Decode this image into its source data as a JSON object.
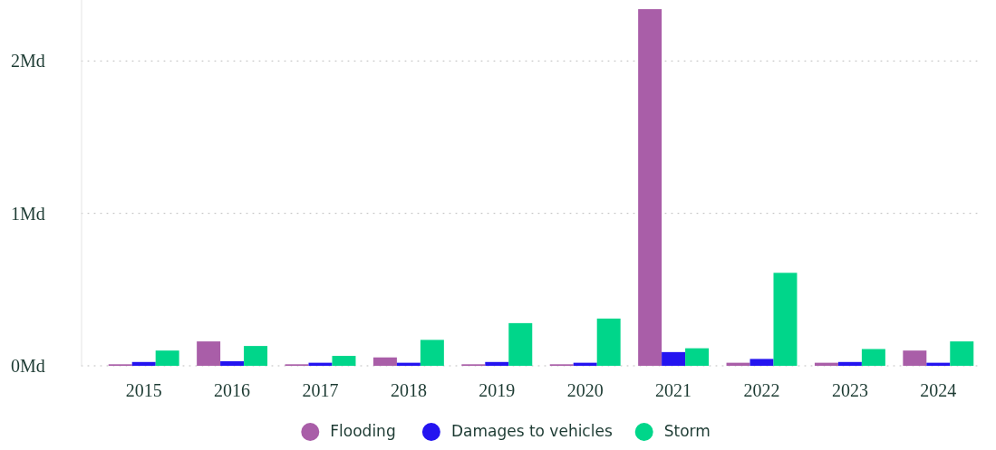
{
  "chart_data": {
    "type": "bar",
    "categories": [
      "2015",
      "2016",
      "2017",
      "2018",
      "2019",
      "2020",
      "2021",
      "2022",
      "2023",
      "2024"
    ],
    "series": [
      {
        "name": "Flooding",
        "color": "#a95ea8",
        "values": [
          0.01,
          0.16,
          0.01,
          0.055,
          0.01,
          0.01,
          2.34,
          0.02,
          0.02,
          0.1
        ]
      },
      {
        "name": "Damages to vehicles",
        "color": "#2414f0",
        "values": [
          0.025,
          0.03,
          0.02,
          0.02,
          0.025,
          0.02,
          0.09,
          0.045,
          0.025,
          0.02
        ]
      },
      {
        "name": "Storm",
        "color": "#00d68a",
        "values": [
          0.1,
          0.13,
          0.065,
          0.17,
          0.28,
          0.31,
          0.115,
          0.61,
          0.11,
          0.16
        ]
      }
    ],
    "ylim": [
      0,
      2.4
    ],
    "yticks": [
      {
        "value": 0,
        "label": "0Md"
      },
      {
        "value": 1,
        "label": "1Md"
      },
      {
        "value": 2,
        "label": "2Md"
      }
    ],
    "grid": "y",
    "legend": "bottom"
  }
}
